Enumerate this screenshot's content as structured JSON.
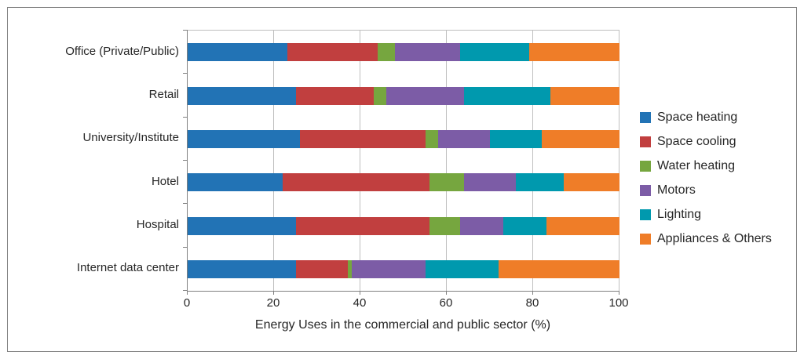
{
  "frame": {
    "border_color": "#808080",
    "background": "#FFFFFF"
  },
  "chart_data": {
    "type": "bar",
    "orientation": "horizontal-stacked",
    "xlabel": "Energy Uses in the commercial and public sector (%)",
    "xlim": [
      0,
      100
    ],
    "xticks": [
      0,
      20,
      40,
      60,
      80,
      100
    ],
    "grid": "vertical",
    "legend_position": "right",
    "categories": [
      "Office (Private/Public)",
      "Retail",
      "University/Institute",
      "Hotel",
      "Hospital",
      "Internet data center"
    ],
    "series": [
      {
        "name": "Space heating",
        "color": "#2273B5",
        "values": [
          23,
          25,
          26,
          22,
          25,
          25
        ]
      },
      {
        "name": "Space cooling",
        "color": "#C13F3F",
        "values": [
          21,
          18,
          29,
          34,
          31,
          12
        ]
      },
      {
        "name": "Water heating",
        "color": "#76A63F",
        "values": [
          4,
          3,
          3,
          8,
          7,
          1
        ]
      },
      {
        "name": "Motors",
        "color": "#7C5CA6",
        "values": [
          15,
          18,
          12,
          12,
          10,
          17
        ]
      },
      {
        "name": "Lighting",
        "color": "#0099AE",
        "values": [
          16,
          20,
          12,
          11,
          10,
          17
        ]
      },
      {
        "name": "Appliances & Others",
        "color": "#EF7D28",
        "values": [
          21,
          16,
          18,
          13,
          17,
          28
        ]
      }
    ]
  },
  "style": {
    "gridline_color": "#BFBFBF",
    "axis_color": "#808080",
    "text_color": "#262626"
  }
}
